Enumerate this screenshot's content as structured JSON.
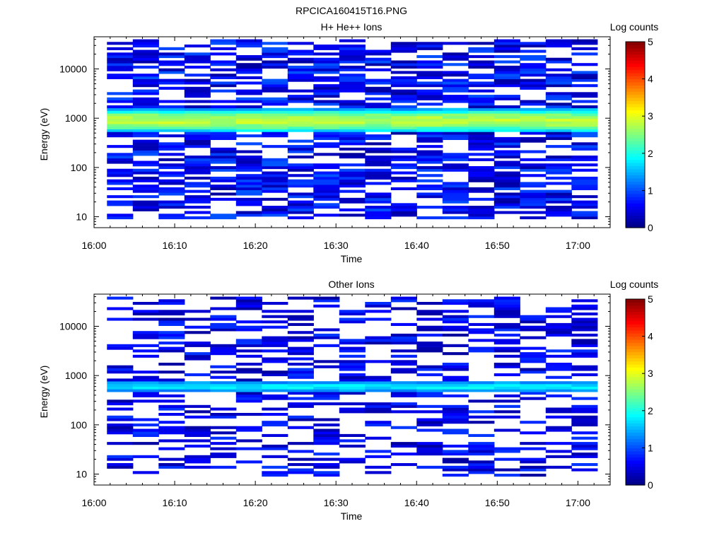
{
  "figure_title": "RPCICA160415T16.PNG",
  "colormap": [
    "#00007f",
    "#0000ff",
    "#007fff",
    "#00ffff",
    "#7fff7f",
    "#ffff00",
    "#ff7f00",
    "#ff0000",
    "#7f0000"
  ],
  "chart_data": [
    {
      "type": "heatmap",
      "title": "H+ He++ Ions",
      "xlabel": "Time",
      "ylabel": "Energy (eV)",
      "yscale": "log",
      "ylim": [
        6,
        45000
      ],
      "xlim_minutes": [
        0,
        64
      ],
      "x_ticks": [
        "16:00",
        "16:10",
        "16:20",
        "16:30",
        "16:40",
        "16:50",
        "17:00"
      ],
      "y_ticks": [
        "10",
        "100",
        "1000",
        "10000"
      ],
      "colorbar": {
        "label": "Log counts",
        "range": [
          0,
          5
        ],
        "ticks": [
          "0",
          "1",
          "2",
          "3",
          "4",
          "5"
        ]
      },
      "time_bins": 19,
      "time_start_minute": 1.6,
      "time_step_minute": 3.2,
      "dominant_band_eV": [
        500,
        1600
      ],
      "peak_log_counts": 3.0
    },
    {
      "type": "heatmap",
      "title": "Other Ions",
      "xlabel": "Time",
      "ylabel": "Energy (eV)",
      "yscale": "log",
      "ylim": [
        6,
        45000
      ],
      "xlim_minutes": [
        0,
        64
      ],
      "x_ticks": [
        "16:00",
        "16:10",
        "16:20",
        "16:30",
        "16:40",
        "16:50",
        "17:00"
      ],
      "y_ticks": [
        "10",
        "100",
        "1000",
        "10000"
      ],
      "colorbar": {
        "label": "Log counts",
        "range": [
          0,
          5
        ],
        "ticks": [
          "0",
          "1",
          "2",
          "3",
          "4",
          "5"
        ]
      },
      "time_bins": 19,
      "time_start_minute": 1.6,
      "time_step_minute": 3.2,
      "dominant_band_eV": [
        450,
        800
      ],
      "peak_log_counts": 2.0
    }
  ]
}
